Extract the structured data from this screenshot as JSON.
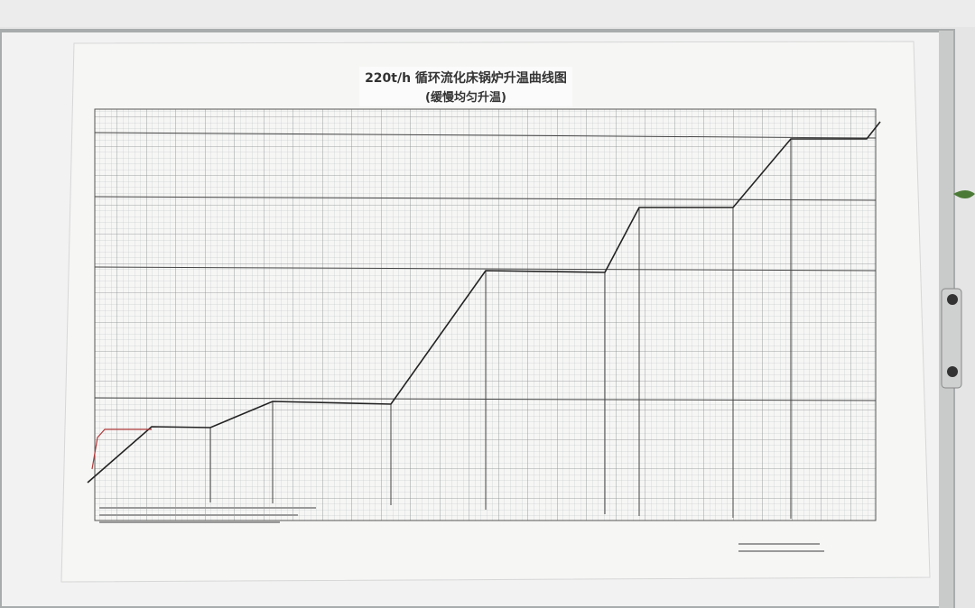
{
  "title": "220t/h 循环流化床锅炉升温曲线图",
  "subtitle": "(缓慢均匀升温)"
}
